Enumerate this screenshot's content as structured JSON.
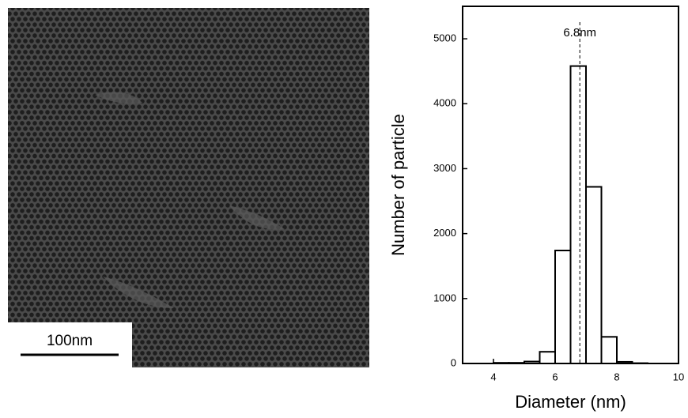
{
  "image": {
    "scale_bar_label": "100nm"
  },
  "chart_data": {
    "type": "histogram",
    "bins": [
      4,
      4.5,
      5,
      5.5,
      6,
      6.5,
      7,
      7.5,
      8,
      8.5,
      9
    ],
    "values": [
      10,
      10,
      30,
      180,
      1740,
      4580,
      2720,
      410,
      25,
      5
    ],
    "color": "#ffffff",
    "xlabel": "Diameter (nm)",
    "ylabel": "Number of particle",
    "xlim": [
      3,
      10
    ],
    "ylim": [
      0,
      5500
    ],
    "xticks": [
      4,
      6,
      8,
      10
    ],
    "yticks": [
      0,
      1000,
      2000,
      3000,
      4000,
      5000
    ],
    "annotations": [
      {
        "label": "6.8nm",
        "x": 6.8
      }
    ]
  }
}
